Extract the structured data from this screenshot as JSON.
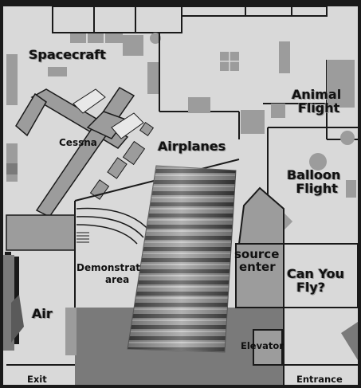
{
  "labels": {
    "spacecraft": "Spacecraft",
    "cessna": "Cessna",
    "airplanes": "Airplanes",
    "animal_flight_1": "Animal",
    "animal_flight_2": "Flight",
    "balloon_flight_1": "Balloon",
    "balloon_flight_2": "Flight",
    "demonstration_1": "Demonstrat",
    "demonstration_2": "area",
    "resource_center_1": "source",
    "resource_center_2": "enter",
    "can_you_fly_1": "Can You",
    "can_you_fly_2": "Fly?",
    "air": "Air",
    "elevator": "Elevator",
    "exit": "Exit",
    "entrance": "Entrance"
  },
  "colors": {
    "floor": "#d9d9d9",
    "wall": "#1a1a1a",
    "block": "#9c9c9c",
    "dark_block": "#5a5a5a",
    "overlay": "#8a8a8a"
  }
}
